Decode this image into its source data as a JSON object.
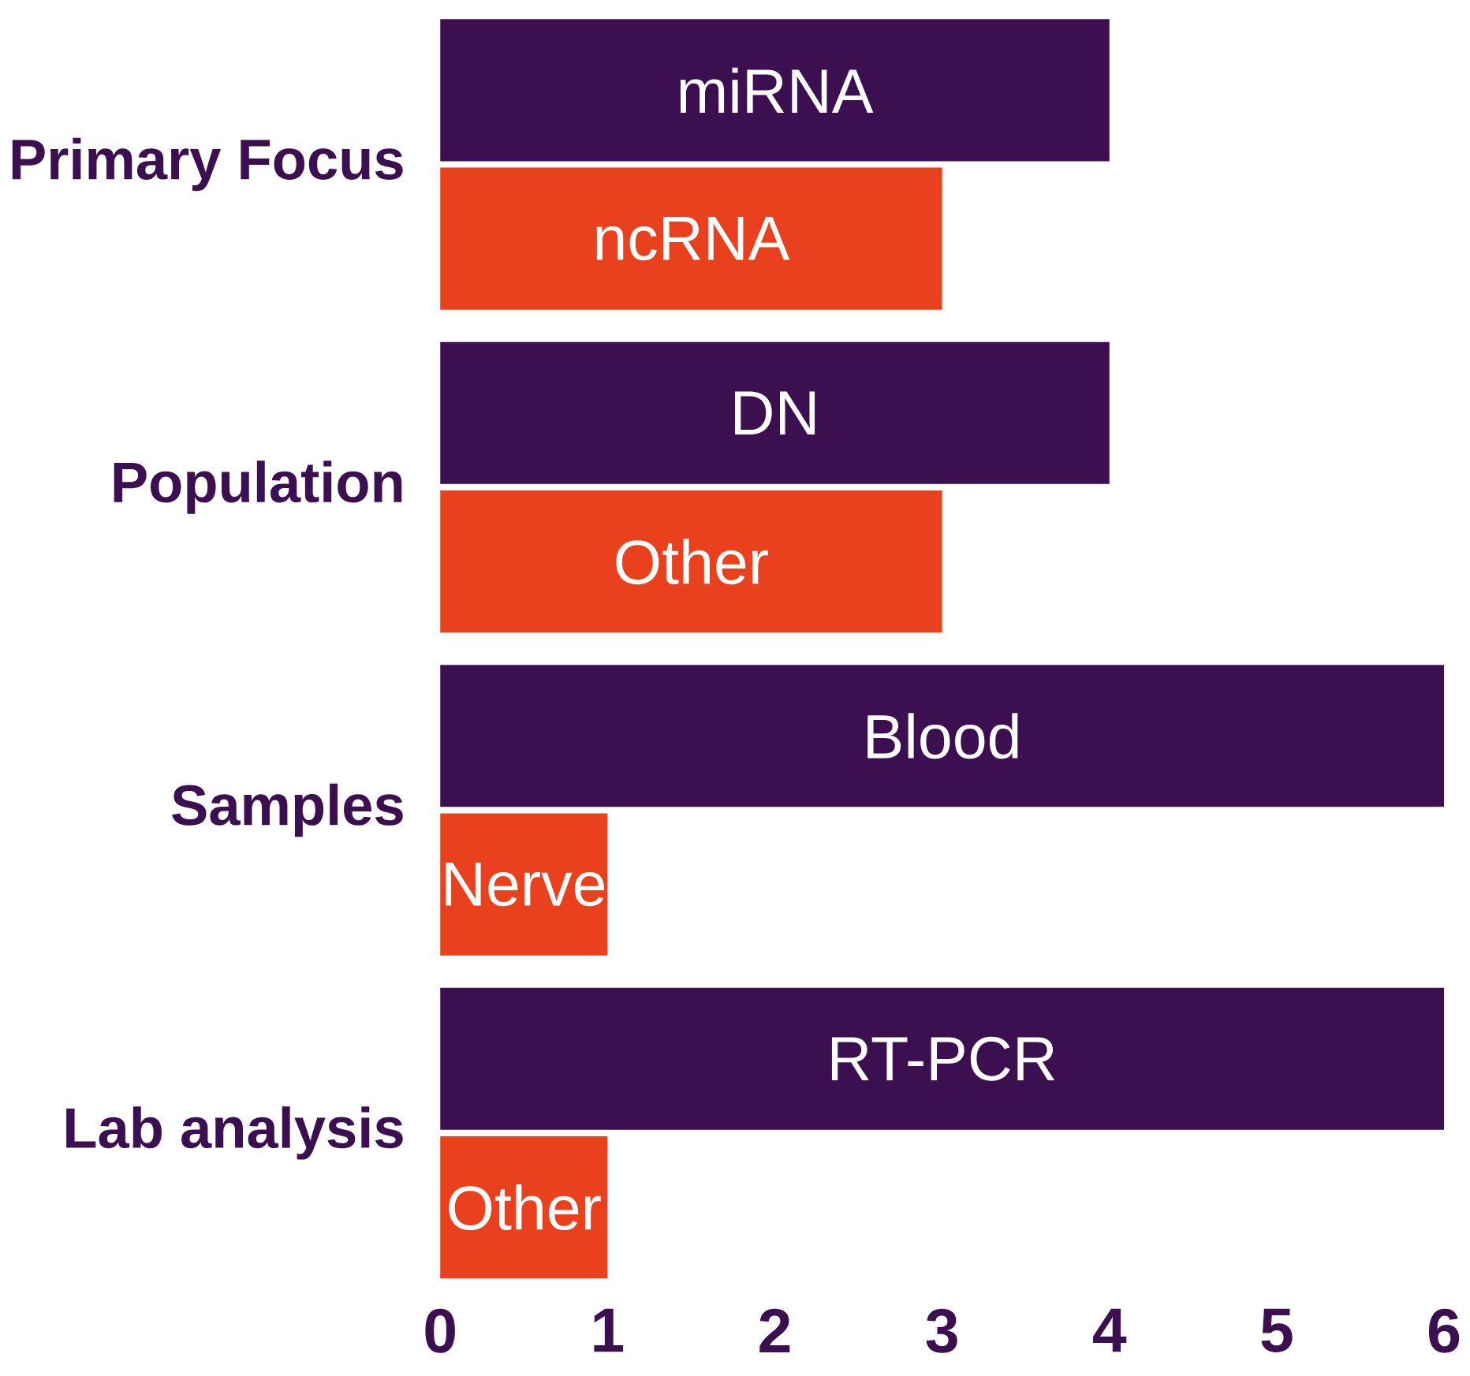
{
  "chart_data": {
    "type": "bar",
    "orientation": "horizontal",
    "categories": [
      "Primary Focus",
      "Population",
      "Samples",
      "Lab analysis"
    ],
    "series": [
      {
        "color": "#3c1050",
        "values": [
          4,
          4,
          6,
          6
        ],
        "value_labels": [
          "miRNA",
          "DN",
          "Blood",
          "RT-PCR"
        ]
      },
      {
        "color": "#e9401e",
        "values": [
          3,
          3,
          1,
          1
        ],
        "value_labels": [
          "ncRNA",
          "Other",
          "Nerve",
          "Other"
        ]
      }
    ],
    "xlim": [
      0,
      6
    ],
    "xticks": [
      0,
      1,
      2,
      3,
      4,
      5,
      6
    ]
  }
}
